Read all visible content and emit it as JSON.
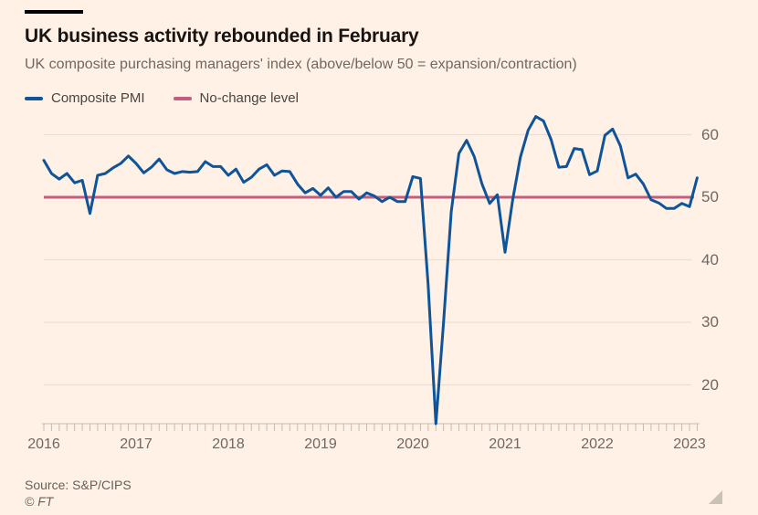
{
  "header": {
    "title": "UK business activity rebounded in February",
    "subtitle": "UK composite purchasing managers' index (above/below 50 = expansion/contraction)"
  },
  "legend": {
    "items": [
      {
        "label": "Composite PMI",
        "color": "#0f5499"
      },
      {
        "label": "No-change level",
        "color": "#c45d7d"
      }
    ]
  },
  "footer": {
    "source": "Source: S&P/CIPS",
    "copyright": "© FT"
  },
  "colors": {
    "background": "#fff1e5",
    "pmi_line": "#0f5499",
    "no_change_line": "#c45d7d",
    "gridline": "#ebdfce",
    "axis": "#c9bbaa",
    "title_text": "#181411",
    "muted_text": "#6f6862",
    "legend_text": "#49443f"
  },
  "chart_data": {
    "type": "line",
    "title": "UK business activity rebounded in February",
    "subtitle": "UK composite purchasing managers' index (above/below 50 = expansion/contraction)",
    "frequency": "monthly",
    "x_start": "2016-01",
    "x_end": "2023-02",
    "series": [
      {
        "name": "Composite PMI",
        "type": "line",
        "color": "#0f5499",
        "values": [
          55.9,
          53.8,
          52.9,
          53.8,
          52.3,
          52.7,
          47.4,
          53.5,
          53.8,
          54.7,
          55.4,
          56.6,
          55.4,
          53.9,
          54.8,
          56.1,
          54.4,
          53.8,
          54.1,
          54.0,
          54.1,
          55.7,
          54.9,
          54.9,
          53.5,
          54.5,
          52.4,
          53.2,
          54.5,
          55.2,
          53.5,
          54.2,
          54.1,
          52.1,
          50.7,
          51.4,
          50.3,
          51.5,
          50.0,
          50.9,
          50.9,
          49.7,
          50.7,
          50.2,
          49.3,
          50.0,
          49.3,
          49.3,
          53.3,
          53.0,
          36.0,
          13.8,
          30.0,
          47.7,
          57.0,
          59.1,
          56.5,
          52.1,
          49.0,
          50.4,
          41.2,
          49.6,
          56.4,
          60.7,
          62.9,
          62.2,
          59.2,
          54.8,
          54.9,
          57.8,
          57.6,
          53.6,
          54.2,
          59.9,
          60.9,
          58.2,
          53.1,
          53.7,
          52.1,
          49.6,
          49.1,
          48.2,
          48.2,
          49.0,
          48.5,
          53.1
        ]
      },
      {
        "name": "No-change level",
        "type": "reference-line",
        "color": "#c45d7d",
        "value": 50
      }
    ],
    "y_ticks": [
      20,
      30,
      40,
      50,
      60
    ],
    "x_ticks": [
      "2016",
      "2017",
      "2018",
      "2019",
      "2020",
      "2021",
      "2022",
      "2023"
    ],
    "ylim": [
      13.8,
      64.5
    ],
    "xlabel": "",
    "ylabel": "",
    "grid": "horizontal",
    "legend_position": "top-left"
  }
}
